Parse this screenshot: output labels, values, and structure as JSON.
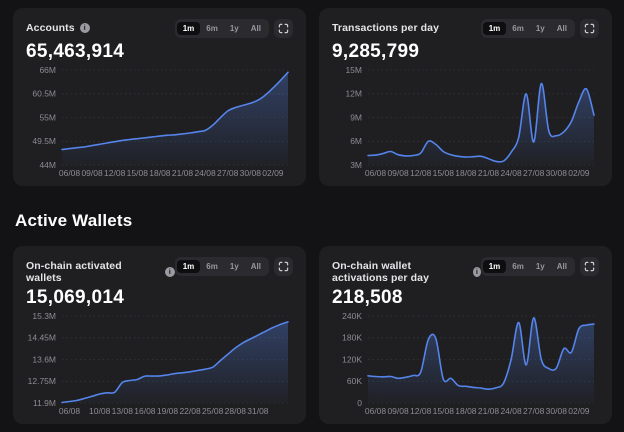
{
  "section_title": "Active Wallets",
  "icons": {
    "info_glyph": "i"
  },
  "colors": {
    "page_bg": "#131315",
    "card_bg": "#1f1f22",
    "accent_line": "#5584ea",
    "grid": "#35353b",
    "axis_text": "#8c8c93",
    "selected_pill_bg": "#0e0e10"
  },
  "cards": [
    {
      "title": "Accounts",
      "has_info": true,
      "value": "65,463,914",
      "ranges": [
        "1m",
        "6m",
        "1y",
        "All"
      ],
      "selected_range": "1m"
    },
    {
      "title": "Transactions per day",
      "has_info": false,
      "value": "9,285,799",
      "ranges": [
        "1m",
        "6m",
        "1y",
        "All"
      ],
      "selected_range": "1m"
    },
    {
      "title": "On-chain activated wallets",
      "has_info": true,
      "value": "15,069,014",
      "ranges": [
        "1m",
        "6m",
        "1y",
        "All"
      ],
      "selected_range": "1m"
    },
    {
      "title": "On-chain wallet activations per day",
      "has_info": true,
      "value": "218,508",
      "ranges": [
        "1m",
        "6m",
        "1y",
        "All"
      ],
      "selected_range": "1m"
    }
  ],
  "chart_data": [
    {
      "type": "area",
      "title": "Accounts",
      "unit": "M",
      "ylim": [
        44,
        66
      ],
      "y_ticks": [
        {
          "value": 44,
          "label": "44M"
        },
        {
          "value": 49.5,
          "label": "49.5M"
        },
        {
          "value": 55,
          "label": "55M"
        },
        {
          "value": 60.5,
          "label": "60.5M"
        },
        {
          "value": 66,
          "label": "66M"
        }
      ],
      "x_tick_labels": [
        "06/08",
        "09/08",
        "12/08",
        "15/08",
        "18/08",
        "21/08",
        "24/08",
        "27/08",
        "30/08",
        "02/09"
      ],
      "x_tick_indices": [
        1,
        4,
        7,
        10,
        13,
        16,
        19,
        22,
        25,
        28
      ],
      "values": [
        47.6,
        47.8,
        48.0,
        48.2,
        48.5,
        48.8,
        49.1,
        49.4,
        49.7,
        49.9,
        50.1,
        50.3,
        50.5,
        50.7,
        50.9,
        51.0,
        51.2,
        51.4,
        51.7,
        52.0,
        53.2,
        54.9,
        56.5,
        57.3,
        57.8,
        58.3,
        59.0,
        60.2,
        61.8,
        63.6,
        65.46
      ]
    },
    {
      "type": "area",
      "title": "Transactions per day",
      "unit": "M",
      "ylim": [
        3,
        15
      ],
      "y_ticks": [
        {
          "value": 3,
          "label": "3M"
        },
        {
          "value": 6,
          "label": "6M"
        },
        {
          "value": 9,
          "label": "9M"
        },
        {
          "value": 12,
          "label": "12M"
        },
        {
          "value": 15,
          "label": "15M"
        }
      ],
      "x_tick_labels": [
        "06/08",
        "09/08",
        "12/08",
        "15/08",
        "18/08",
        "21/08",
        "24/08",
        "27/08",
        "30/08",
        "02/09"
      ],
      "x_tick_indices": [
        1,
        4,
        7,
        10,
        13,
        16,
        19,
        22,
        25,
        28
      ],
      "values": [
        4.2,
        4.25,
        4.45,
        4.7,
        4.3,
        4.15,
        4.2,
        4.5,
        6.0,
        5.6,
        4.7,
        4.3,
        4.1,
        4.0,
        4.05,
        4.1,
        3.8,
        3.45,
        3.5,
        4.6,
        6.5,
        12.0,
        5.9,
        13.3,
        7.3,
        6.7,
        7.2,
        8.5,
        11.0,
        12.6,
        9.29
      ]
    },
    {
      "type": "area",
      "title": "On-chain activated wallets",
      "unit": "M",
      "ylim": [
        11.9,
        15.3
      ],
      "y_ticks": [
        {
          "value": 11.9,
          "label": "11.9M"
        },
        {
          "value": 12.75,
          "label": "12.75M"
        },
        {
          "value": 13.6,
          "label": "13.6M"
        },
        {
          "value": 14.45,
          "label": "14.45M"
        },
        {
          "value": 15.3,
          "label": "15.3M"
        }
      ],
      "x_tick_labels": [
        "06/08",
        "10/08",
        "13/08",
        "16/08",
        "19/08",
        "22/08",
        "25/08",
        "28/08",
        "31/08"
      ],
      "x_tick_indices": [
        1,
        5,
        8,
        11,
        14,
        17,
        20,
        23,
        26
      ],
      "values": [
        11.92,
        11.96,
        12.0,
        12.08,
        12.16,
        12.25,
        12.3,
        12.32,
        12.7,
        12.78,
        12.82,
        12.95,
        12.95,
        12.96,
        13.0,
        13.05,
        13.08,
        13.12,
        13.17,
        13.22,
        13.3,
        13.55,
        13.8,
        14.05,
        14.25,
        14.4,
        14.55,
        14.7,
        14.85,
        14.97,
        15.07
      ]
    },
    {
      "type": "area",
      "title": "On-chain wallet activations per day",
      "unit": "K",
      "ylim": [
        0,
        240
      ],
      "y_ticks": [
        {
          "value": 0,
          "label": "0"
        },
        {
          "value": 60,
          "label": "60K"
        },
        {
          "value": 120,
          "label": "120K"
        },
        {
          "value": 180,
          "label": "180K"
        },
        {
          "value": 240,
          "label": "240K"
        }
      ],
      "x_tick_labels": [
        "06/08",
        "09/08",
        "12/08",
        "15/08",
        "18/08",
        "21/08",
        "24/08",
        "27/08",
        "30/08",
        "02/09"
      ],
      "x_tick_indices": [
        1,
        4,
        7,
        10,
        13,
        16,
        19,
        22,
        25,
        28
      ],
      "values": [
        75,
        73,
        72,
        73,
        68,
        71,
        76,
        85,
        175,
        178,
        66,
        68,
        48,
        46,
        43,
        41,
        38,
        42,
        55,
        120,
        222,
        105,
        235,
        120,
        95,
        96,
        150,
        140,
        205,
        215,
        218
      ]
    }
  ]
}
